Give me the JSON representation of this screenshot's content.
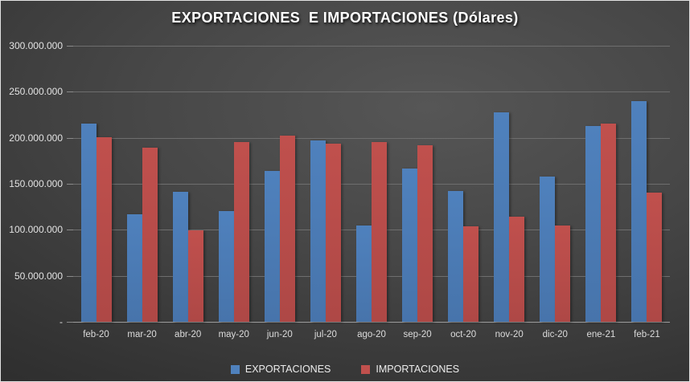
{
  "chart_data": {
    "type": "bar",
    "title": "EXPORTACIONES  E IMPORTACIONES (Dólares)",
    "categories": [
      "feb-20",
      "mar-20",
      "abr-20",
      "may-20",
      "jun-20",
      "jul-20",
      "ago-20",
      "sep-20",
      "oct-20",
      "nov-20",
      "dic-20",
      "ene-21",
      "feb-21"
    ],
    "series": [
      {
        "name": "EXPORTACIONES",
        "color": "#4F81BD",
        "color_dark": "#4774AB",
        "values": [
          215000000,
          117000000,
          141000000,
          120000000,
          164000000,
          197000000,
          105000000,
          167000000,
          142000000,
          228000000,
          158000000,
          213000000,
          240000000
        ]
      },
      {
        "name": "IMPORTACIONES",
        "color": "#C0504D",
        "color_dark": "#AE4846",
        "values": [
          201000000,
          189000000,
          99000000,
          195000000,
          202000000,
          194000000,
          195000000,
          192000000,
          104000000,
          114000000,
          105000000,
          215000000,
          140000000
        ]
      }
    ],
    "ylim": [
      0,
      300000000
    ],
    "y_ticks": [
      {
        "value": 300000000,
        "label": "300.000.000"
      },
      {
        "value": 250000000,
        "label": "250.000.000"
      },
      {
        "value": 200000000,
        "label": "200.000.000"
      },
      {
        "value": 150000000,
        "label": "150.000.000"
      },
      {
        "value": 100000000,
        "label": "100.000.000"
      },
      {
        "value": 50000000,
        "label": "50.000.000"
      },
      {
        "value": 0,
        "label": "-"
      }
    ],
    "grid": true,
    "legend_position": "bottom",
    "background": "dark-gray-gradient"
  },
  "legend": {
    "items": [
      {
        "label": "EXPORTACIONES",
        "color": "#4F81BD"
      },
      {
        "label": "IMPORTACIONES",
        "color": "#C0504D"
      }
    ]
  }
}
